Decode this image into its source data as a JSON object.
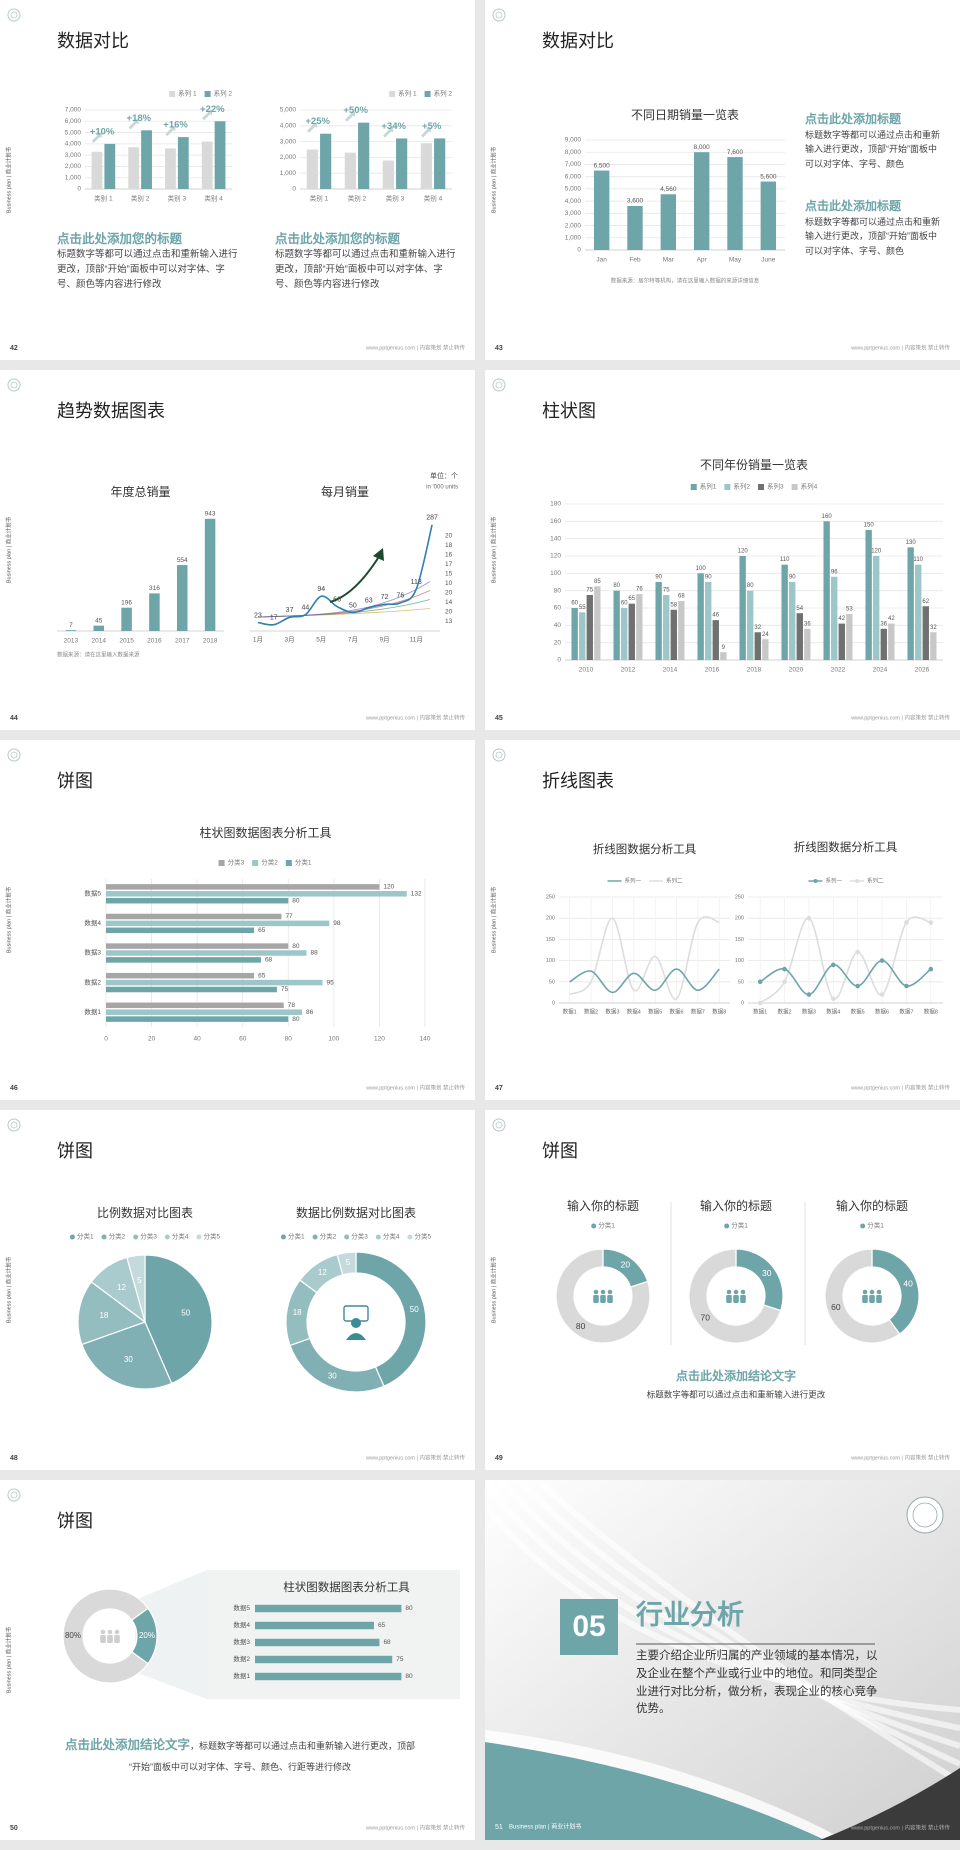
{
  "side_label": "Business plan | 商业计划书",
  "footer": "www.pptgenius.com | 内容策划 禁止转传",
  "slides": [
    {
      "number": 42,
      "title": "数据对比",
      "charts": [
        {
          "type": "bar",
          "categories": [
            "类别 1",
            "类别 2",
            "类别 3",
            "类别 4"
          ],
          "series": [
            {
              "name": "系列 1",
              "color": "#d9d9d9",
              "values": [
                3300,
                3700,
                3600,
                4200
              ]
            },
            {
              "name": "系列 2",
              "color": "#6ea5a8",
              "values": [
                4000,
                5200,
                4600,
                6000
              ]
            }
          ],
          "ylim": [
            0,
            7000
          ],
          "yticks": [
            0,
            {
              "value": 1000,
              "label": "1,000"
            },
            {
              "value": 2000,
              "label": "2,000"
            },
            {
              "value": 3000,
              "label": "3,000"
            },
            {
              "value": 4000,
              "label": "4,000"
            },
            {
              "value": 5000,
              "label": "5,000"
            },
            {
              "value": 6000,
              "label": "6,000"
            },
            {
              "value": 7000,
              "label": "7,000"
            }
          ],
          "grid": true,
          "annotations": [
            "+10%",
            "+18%",
            "+16%",
            "+22%"
          ]
        },
        {
          "type": "bar",
          "categories": [
            "类别 1",
            "类别 2",
            "类别 3",
            "类别 4"
          ],
          "series": [
            {
              "name": "系列 1",
              "color": "#d9d9d9",
              "values": [
                2500,
                2300,
                1800,
                2900
              ]
            },
            {
              "name": "系列 2",
              "color": "#6ea5a8",
              "values": [
                3500,
                4200,
                3200,
                3200
              ]
            }
          ],
          "ylim": [
            0,
            5000
          ],
          "yticks": [
            0,
            {
              "value": 1000,
              "label": "1,000"
            },
            {
              "value": 2000,
              "label": "2,000"
            },
            {
              "value": 3000,
              "label": "3,000"
            },
            {
              "value": 4000,
              "label": "4,000"
            },
            {
              "value": 5000,
              "label": "5,000"
            }
          ],
          "grid": true,
          "annotations": [
            "+25%",
            "+50%",
            "+34%",
            "+5%"
          ]
        }
      ],
      "blocks": [
        {
          "heading": "点击此处添加您的标题",
          "text": "标题数字等都可以通过点击和重新输入进行更改，顶部“开始”面板中可以对字体、字号、颜色等内容进行修改"
        },
        {
          "heading": "点击此处添加您的标题",
          "text": "标题数字等都可以通过点击和重新输入进行更改，顶部“开始”面板中可以对字体、字号、颜色等内容进行修改"
        }
      ]
    },
    {
      "number": 43,
      "title": "数据对比",
      "charts": [
        {
          "type": "bar",
          "title": "不同日期销量一览表",
          "categories": [
            "Jan",
            "Feb",
            "Mar",
            "Apr",
            "May",
            "June"
          ],
          "values": [
            6500,
            3600,
            4560,
            8000,
            7600,
            5600
          ],
          "value_labels": [
            "6,500",
            "3,600",
            "4,560",
            "8,000",
            "7,600",
            "5,600"
          ],
          "color": "#6ea5a8",
          "ylim": [
            0,
            9000
          ],
          "yticks": [
            0,
            {
              "value": 1000,
              "label": "1,000"
            },
            {
              "value": 2000,
              "label": "2,000"
            },
            {
              "value": 3000,
              "label": "3,000"
            },
            {
              "value": 4000,
              "label": "4,000"
            },
            {
              "value": 5000,
              "label": "5,000"
            },
            {
              "value": 6000,
              "label": "6,000"
            },
            {
              "value": 7000,
              "label": "7,000"
            },
            {
              "value": 8000,
              "label": "8,000"
            },
            {
              "value": 9000,
              "label": "9,000"
            }
          ],
          "grid": true,
          "note": "数据来源：居尔特等机构，请在这里输入数据的来源详细信息"
        }
      ],
      "blocks": [
        {
          "heading": "点击此处添加标题",
          "text": "标题数字等都可以通过点击和重新输入进行更改，顶部“开始”面板中可以对字体、字号、颜色"
        },
        {
          "heading": "点击此处添加标题",
          "text": "标题数字等都可以通过点击和重新输入进行更改，顶部“开始”面板中可以对字体、字号、颜色"
        }
      ]
    },
    {
      "number": 44,
      "title": "趋势数据图表",
      "charts": [
        {
          "type": "bar",
          "title": "年度总销量",
          "categories": [
            "2013",
            "2014",
            "2015",
            "2016",
            "2017",
            "2018"
          ],
          "values": [
            7,
            45,
            196,
            316,
            554,
            943
          ],
          "color": "#6ea5a8",
          "ylim": [
            0,
            1000
          ],
          "show_values": true,
          "note": "数据来源：请在这里输入数据来源"
        },
        {
          "type": "line",
          "title": "每月销量",
          "categories": [
            "1月",
            null,
            "3月",
            null,
            "5月",
            null,
            "7月",
            null,
            "9月",
            null,
            "11月",
            null
          ],
          "series": [
            {
              "color": "#2f7fb0",
              "values": [
                23,
                17,
                37,
                44,
                94,
                66,
                50,
                63,
                72,
                76,
                113,
                287
              ]
            }
          ],
          "ylim": [
            0,
            300
          ],
          "show_values": true,
          "smooth": true,
          "unit": "单位：个",
          "unit_note": "in '000 units",
          "end_labels": [
            20,
            18,
            16,
            17,
            15,
            10,
            20,
            14,
            20,
            13
          ]
        }
      ]
    },
    {
      "number": 45,
      "title": "柱状图",
      "charts": [
        {
          "type": "bar",
          "title": "不同年份销量一览表",
          "categories": [
            "2010",
            "2012",
            "2014",
            "2016",
            "2018",
            "2020",
            "2022",
            "2024",
            "2026"
          ],
          "series": [
            {
              "name": "系列1",
              "color": "#6ea5a8",
              "values": [
                60,
                80,
                90,
                100,
                120,
                110,
                160,
                150,
                130
              ]
            },
            {
              "name": "系列2",
              "color": "#9cc6c8",
              "values": [
                55,
                60,
                75,
                90,
                80,
                90,
                96,
                120,
                110
              ]
            },
            {
              "name": "系列3",
              "color": "#707070",
              "values": [
                75,
                65,
                58,
                46,
                32,
                54,
                42,
                36,
                62
              ]
            },
            {
              "name": "系列4",
              "color": "#c8c8c8",
              "values": [
                85,
                76,
                68,
                9,
                24,
                36,
                53,
                42,
                32
              ]
            }
          ],
          "ylim": [
            0,
            180
          ],
          "yticks": [
            0,
            20,
            40,
            60,
            80,
            100,
            120,
            140,
            160,
            180
          ],
          "grid": true,
          "show_values": true
        }
      ]
    },
    {
      "number": 46,
      "title": "饼图",
      "charts": [
        {
          "type": "hbar",
          "title": "柱状图数据图表分析工具",
          "categories": [
            "数据5",
            "数据4",
            "数据3",
            "数据2",
            "数据1"
          ],
          "series": [
            {
              "name": "分类3",
              "color": "#a6a6a6",
              "values": [
                120,
                77,
                80,
                65,
                78
              ]
            },
            {
              "name": "分类2",
              "color": "#9cc6c8",
              "values": [
                132,
                98,
                88,
                95,
                86
              ]
            },
            {
              "name": "分类1",
              "color": "#6ea5a8",
              "values": [
                80,
                65,
                68,
                75,
                80
              ]
            }
          ],
          "xlim": [
            0,
            140
          ],
          "xticks": [
            0,
            20,
            40,
            60,
            80,
            100,
            120,
            140
          ],
          "grid": true,
          "show_values": true
        }
      ]
    },
    {
      "number": 47,
      "title": "折线图表",
      "charts": [
        {
          "type": "line",
          "title": "折线图数据分析工具",
          "categories": [
            "数据1",
            "数据2",
            "数据3",
            "数据4",
            "数据5",
            "数据6",
            "数据7",
            "数据8"
          ],
          "series": [
            {
              "name": "系列一",
              "color": "#6ea5a8",
              "values": [
                50,
                75,
                25,
                70,
                30,
                80,
                30,
                80
              ]
            },
            {
              "name": "系列二",
              "color": "#dddddd",
              "values": [
                20,
                50,
                200,
                30,
                110,
                10,
                190,
                190
              ]
            }
          ],
          "ylim": [
            0,
            250
          ],
          "yticks": [
            0,
            50,
            100,
            150,
            200,
            250
          ],
          "grid": true,
          "smooth": true
        },
        {
          "type": "line",
          "title": "折线图数据分析工具",
          "categories": [
            "数据1",
            "数据2",
            "数据3",
            "数据4",
            "数据5",
            "数据6",
            "数据7",
            "数据8"
          ],
          "series": [
            {
              "name": "系列一",
              "color": "#6ea5a8",
              "values": [
                50,
                80,
                20,
                90,
                40,
                100,
                40,
                80
              ]
            },
            {
              "name": "系列二",
              "color": "#dddddd",
              "values": [
                0,
                50,
                200,
                10,
                120,
                20,
                190,
                190
              ]
            }
          ],
          "ylim": [
            0,
            250
          ],
          "yticks": [
            0,
            50,
            100,
            150,
            200,
            250
          ],
          "grid": true,
          "smooth": true,
          "markers": true
        }
      ]
    },
    {
      "number": 48,
      "title": "饼图",
      "charts": [
        {
          "type": "pie",
          "title": "比例数据对比图表",
          "categories": [
            "分类1",
            "分类2",
            "分类3",
            "分类4",
            "分类5"
          ],
          "values": [
            50,
            30,
            18,
            12,
            5
          ],
          "colors": [
            "#6ea5a8",
            "#80b0b3",
            "#94bdbf",
            "#aacbcd",
            "#c4dadc"
          ]
        },
        {
          "type": "donut",
          "title": "数据比例数据对比图表",
          "categories": [
            "分类1",
            "分类2",
            "分类3",
            "分类4",
            "分类5"
          ],
          "values": [
            50,
            30,
            18,
            12,
            5
          ],
          "colors": [
            "#6ea5a8",
            "#80b0b3",
            "#94bdbf",
            "#aacbcd",
            "#c4dadc"
          ]
        }
      ]
    },
    {
      "number": 49,
      "title": "饼图",
      "charts": [
        {
          "type": "donut",
          "title": "输入你的标题",
          "categories": [
            "分类1",
            null
          ],
          "values": [
            20,
            80
          ],
          "colors": [
            "#6ea5a8",
            "#d9d9d9"
          ]
        },
        {
          "type": "donut",
          "title": "输入你的标题",
          "categories": [
            "分类1",
            null
          ],
          "values": [
            30,
            70
          ],
          "colors": [
            "#6ea5a8",
            "#d9d9d9"
          ]
        },
        {
          "type": "donut",
          "title": "输入你的标题",
          "categories": [
            "分类1",
            null
          ],
          "values": [
            40,
            60
          ],
          "colors": [
            "#6ea5a8",
            "#d9d9d9"
          ]
        }
      ],
      "conclusion": {
        "heading": "点击此处添加结论文字",
        "text": "标题数字等都可以通过点击和重新输入进行更改"
      }
    },
    {
      "number": 50,
      "title": "饼图",
      "charts": [
        {
          "type": "donut",
          "values": [
            80,
            20
          ],
          "value_labels": [
            "80%",
            "20%"
          ],
          "colors": [
            "#d9d9d9",
            "#6ea5a8"
          ]
        },
        {
          "type": "hbar",
          "title": "柱状图数据图表分析工具",
          "categories": [
            "数据5",
            "数据4",
            "数据3",
            "数据2",
            "数据1"
          ],
          "values": [
            80,
            65,
            68,
            75,
            80
          ],
          "color": "#6ea5a8",
          "xlim": [
            0,
            100
          ],
          "show_values": true
        }
      ],
      "conclusion": {
        "heading": "点击此处添加结论文字",
        "text": "，标题数字等都可以通过点击和重新输入进行更改，顶部“开始”面板中可以对字体、字号、颜色、行距等进行修改"
      }
    },
    {
      "number": 51,
      "section_number": "05",
      "title": "行业分析",
      "text": "主要介绍企业所归属的产业领域的基本情况，以及企业在整个产业或行业中的地位。和同类型企业进行对比分析，做分析，表现企业的核心竞争优势。"
    }
  ]
}
